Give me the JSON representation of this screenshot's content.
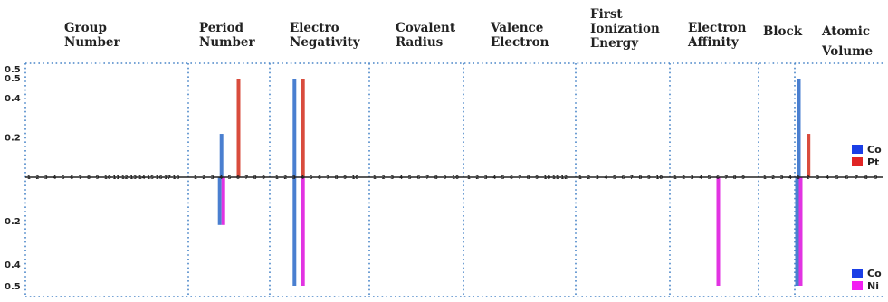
{
  "chart_data": {
    "type": "bar",
    "layout": "mirrored small-multiples (top: Co vs Pt, bottom: Co vs Ni)",
    "y_ticks": [
      0.2,
      0.4,
      0.5
    ],
    "ylim": [
      0,
      0.5
    ],
    "panels": [
      {
        "title": [
          "Group",
          "Number"
        ],
        "x_max": 18,
        "top": [],
        "bottom": []
      },
      {
        "title": [
          "Period",
          "Number"
        ],
        "x_max": 9,
        "top": [
          {
            "series": "Co",
            "x": 4,
            "value": 0.22
          },
          {
            "series": "Pt",
            "x": 6,
            "value": 0.5
          }
        ],
        "bottom": [
          {
            "series": "Co",
            "x": 4,
            "value": 0.22
          },
          {
            "series": "Ni",
            "x": 4,
            "value": 0.22
          }
        ]
      },
      {
        "title": [
          "Electro",
          "Negativity"
        ],
        "x_max": 10,
        "top": [
          {
            "series": "Co",
            "x": 3,
            "value": 0.5
          },
          {
            "series": "Pt",
            "x": 4,
            "value": 0.5
          }
        ],
        "bottom": [
          {
            "series": "Co",
            "x": 3,
            "value": 0.5
          },
          {
            "series": "Ni",
            "x": 4,
            "value": 0.5
          }
        ]
      },
      {
        "title": [
          "Covalent",
          "Radius"
        ],
        "x_max": 10,
        "top": [],
        "bottom": []
      },
      {
        "title": [
          "Valence",
          "Electron"
        ],
        "x_max": 12,
        "top": [],
        "bottom": []
      },
      {
        "title": [
          "First",
          "Ionization",
          "Energy"
        ],
        "x_max": 10,
        "top": [],
        "bottom": []
      },
      {
        "title": [
          "Electron",
          "Affinity"
        ],
        "x_max": 9,
        "top": [],
        "bottom": [
          {
            "series": "Ni",
            "x": 6,
            "value": 0.5
          }
        ]
      },
      {
        "title": [
          "Block"
        ],
        "x_max": 4,
        "top": [],
        "bottom": []
      },
      {
        "title": [
          "Atomic",
          "Volume"
        ],
        "x_max": 9,
        "top": [
          {
            "series": "Co",
            "x": 1,
            "value": 0.5
          },
          {
            "series": "Pt",
            "x": 2,
            "value": 0.22
          }
        ],
        "bottom": [
          {
            "series": "Co",
            "x": 1,
            "value": 0.5
          },
          {
            "series": "Ni",
            "x": 1,
            "value": 0.5
          }
        ]
      }
    ],
    "legend_top": [
      {
        "name": "Co",
        "color": "#1a3ee6"
      },
      {
        "name": "Pt",
        "color": "#e02424"
      }
    ],
    "legend_bottom": [
      {
        "name": "Co",
        "color": "#1a3ee6"
      },
      {
        "name": "Ni",
        "color": "#f21ff2"
      }
    ],
    "colors": {
      "Co_bar": "#4a7fd0",
      "Pt_bar": "#d94c3d",
      "Ni_bar": "#e233e2",
      "grid": "#4a86c8",
      "axis": "#222222"
    }
  }
}
